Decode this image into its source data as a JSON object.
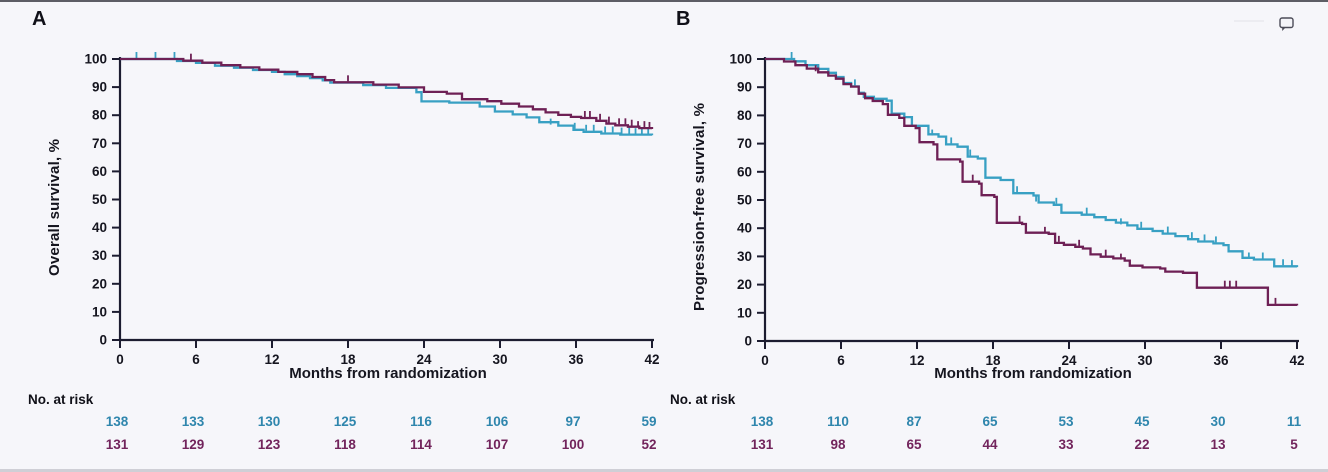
{
  "page": {
    "risk_header": "No. at risk",
    "comment_icon": "speech-bubble-outline"
  },
  "colors": {
    "background": "#f6f6fa",
    "axis": "#1c1c30",
    "tick_text": "#15151f",
    "curve_cyan": "#38a0c3",
    "curve_maroon": "#6e2055",
    "risk_text_cyan": "#2f86ad",
    "risk_text_maroon": "#72245c"
  },
  "chart_data": [
    {
      "id": "overall-survival",
      "panel_label": "A",
      "type": "line",
      "subtype": "kaplan-meier-step",
      "ylabel": "Overall survival, %",
      "xlabel": "Months from randomization",
      "xlim": [
        0,
        42
      ],
      "ylim": [
        0,
        100
      ],
      "xticks": [
        0,
        6,
        12,
        18,
        24,
        30,
        36,
        42
      ],
      "yticks": [
        0,
        10,
        20,
        30,
        40,
        50,
        60,
        70,
        80,
        90,
        100
      ],
      "grid": false,
      "legend": "none",
      "series": [
        {
          "name": "arm-cyan",
          "color": "#38a0c3",
          "points": [
            [
              0,
              100
            ],
            [
              4.5,
              99.3
            ],
            [
              6,
              98.6
            ],
            [
              7.5,
              97.6
            ],
            [
              9,
              96.9
            ],
            [
              10.5,
              96.1
            ],
            [
              12,
              95.4
            ],
            [
              13,
              94.6
            ],
            [
              14,
              93.9
            ],
            [
              15,
              93.2
            ],
            [
              16,
              92.4
            ],
            [
              16.6,
              91.6
            ],
            [
              19.2,
              90.7
            ],
            [
              21,
              89.7
            ],
            [
              23.4,
              88.2
            ],
            [
              23.8,
              84.9
            ],
            [
              26,
              84.5
            ],
            [
              28.4,
              83.1
            ],
            [
              29.6,
              81.3
            ],
            [
              31,
              80.3
            ],
            [
              32.1,
              79.2
            ],
            [
              33.1,
              77.5
            ],
            [
              34.6,
              76.3
            ],
            [
              35.8,
              74.8
            ],
            [
              36.6,
              74.1
            ],
            [
              38,
              73.5
            ],
            [
              39.5,
              73.1
            ],
            [
              42,
              72.9
            ]
          ],
          "censor_ticks": [
            [
              1.3,
              100
            ],
            [
              2.8,
              100
            ],
            [
              4.3,
              100
            ],
            [
              34,
              76.3
            ],
            [
              35.9,
              74.8
            ],
            [
              36.8,
              74.1
            ],
            [
              37.4,
              74.1
            ],
            [
              38.3,
              73.5
            ],
            [
              38.9,
              73.5
            ],
            [
              39.6,
              73.1
            ],
            [
              40.2,
              73.1
            ],
            [
              40.7,
              72.9
            ],
            [
              41.2,
              72.9
            ],
            [
              41.7,
              72.9
            ]
          ]
        },
        {
          "name": "arm-maroon",
          "color": "#6e2055",
          "points": [
            [
              0,
              100
            ],
            [
              5,
              99.4
            ],
            [
              6.5,
              98.7
            ],
            [
              8,
              97.8
            ],
            [
              9.5,
              97
            ],
            [
              11,
              96.2
            ],
            [
              12.5,
              95.4
            ],
            [
              14,
              94.6
            ],
            [
              15.2,
              93.6
            ],
            [
              16.2,
              92.5
            ],
            [
              16.9,
              91.7
            ],
            [
              20,
              90.9
            ],
            [
              22,
              89.9
            ],
            [
              24,
              88.3
            ],
            [
              25.8,
              87.7
            ],
            [
              27,
              85.7
            ],
            [
              29,
              85
            ],
            [
              30.1,
              84.1
            ],
            [
              31.5,
              83.1
            ],
            [
              32.6,
              82.1
            ],
            [
              33.6,
              81
            ],
            [
              34.6,
              80.1
            ],
            [
              35.6,
              79.4
            ],
            [
              36.4,
              79
            ],
            [
              37.6,
              78
            ],
            [
              38.4,
              77
            ],
            [
              39.1,
              76.4
            ],
            [
              40.1,
              75.9
            ],
            [
              41,
              75.4
            ],
            [
              42,
              75.1
            ]
          ],
          "censor_ticks": [
            [
              5.6,
              99.4
            ],
            [
              18,
              91.7
            ],
            [
              36.7,
              79
            ],
            [
              37.1,
              79
            ],
            [
              37.9,
              78
            ],
            [
              38.6,
              77
            ],
            [
              39.4,
              76.4
            ],
            [
              39.9,
              76.4
            ],
            [
              40.4,
              75.9
            ],
            [
              40.9,
              75.4
            ],
            [
              41.4,
              75.4
            ],
            [
              41.8,
              75.1
            ]
          ]
        }
      ],
      "no_at_risk": {
        "label": "No. at risk",
        "rows": [
          {
            "name": "arm-cyan",
            "color": "#2f86ad",
            "values": [
              138,
              133,
              130,
              125,
              116,
              106,
              97,
              59
            ]
          },
          {
            "name": "arm-maroon",
            "color": "#72245c",
            "values": [
              131,
              129,
              123,
              118,
              114,
              107,
              100,
              52
            ]
          }
        ]
      }
    },
    {
      "id": "progression-free-survival",
      "panel_label": "B",
      "type": "line",
      "subtype": "kaplan-meier-step",
      "ylabel": "Progression-free survival, %",
      "xlabel": "Months from randomization",
      "xlim": [
        0,
        42
      ],
      "ylim": [
        0,
        100
      ],
      "xticks": [
        0,
        6,
        12,
        18,
        24,
        30,
        36,
        42
      ],
      "yticks": [
        0,
        10,
        20,
        30,
        40,
        50,
        60,
        70,
        80,
        90,
        100
      ],
      "grid": false,
      "legend": "none",
      "series": [
        {
          "name": "arm-cyan",
          "color": "#38a0c3",
          "points": [
            [
              0,
              100
            ],
            [
              2.3,
              99.2
            ],
            [
              3.2,
              97.8
            ],
            [
              4.2,
              96.5
            ],
            [
              5,
              95.1
            ],
            [
              5.6,
              93.6
            ],
            [
              6.2,
              91.5
            ],
            [
              6.8,
              90.3
            ],
            [
              7.4,
              88
            ],
            [
              7.8,
              86.6
            ],
            [
              8.6,
              85.9
            ],
            [
              9.6,
              85.2
            ],
            [
              10,
              80.6
            ],
            [
              11,
              79.4
            ],
            [
              11.6,
              76.3
            ],
            [
              12.9,
              73.3
            ],
            [
              13.7,
              72.5
            ],
            [
              14.3,
              69.7
            ],
            [
              15.2,
              68.9
            ],
            [
              16,
              65.4
            ],
            [
              16.8,
              64.7
            ],
            [
              17.4,
              57.9
            ],
            [
              18.6,
              57.1
            ],
            [
              19.6,
              52.4
            ],
            [
              21.2,
              51.6
            ],
            [
              21.6,
              49.1
            ],
            [
              22.8,
              48.3
            ],
            [
              23.4,
              45.5
            ],
            [
              25,
              44.8
            ],
            [
              26,
              43.9
            ],
            [
              26.9,
              42.9
            ],
            [
              27.7,
              42
            ],
            [
              28.6,
              41
            ],
            [
              29.4,
              39.8
            ],
            [
              30.6,
              39
            ],
            [
              31.4,
              38.1
            ],
            [
              32.4,
              37.2
            ],
            [
              33.4,
              36.1
            ],
            [
              34.2,
              35.3
            ],
            [
              35.4,
              34.6
            ],
            [
              36.2,
              34
            ],
            [
              36.6,
              31.8
            ],
            [
              37.7,
              29.5
            ],
            [
              38.6,
              28.9
            ],
            [
              40.2,
              26.5
            ],
            [
              42,
              26.2
            ]
          ],
          "censor_ticks": [
            [
              2.1,
              100
            ],
            [
              7.1,
              90.3
            ],
            [
              13.2,
              72.5
            ],
            [
              14.7,
              69.7
            ],
            [
              16.2,
              65.4
            ],
            [
              19.9,
              52.4
            ],
            [
              21.4,
              49.1
            ],
            [
              23,
              48.3
            ],
            [
              25.4,
              44.8
            ],
            [
              28.1,
              41
            ],
            [
              29.7,
              39.8
            ],
            [
              31.8,
              38.1
            ],
            [
              33.7,
              36.1
            ],
            [
              34.7,
              35.3
            ],
            [
              35.6,
              34.6
            ],
            [
              38.2,
              28.9
            ],
            [
              39.3,
              28.9
            ],
            [
              40.9,
              26.5
            ],
            [
              41.6,
              26.2
            ]
          ]
        },
        {
          "name": "arm-maroon",
          "color": "#6e2055",
          "points": [
            [
              0,
              100
            ],
            [
              1.5,
              99.1
            ],
            [
              2.4,
              97.8
            ],
            [
              3.3,
              96.6
            ],
            [
              4.2,
              95.3
            ],
            [
              5,
              94.1
            ],
            [
              5.6,
              93
            ],
            [
              6.2,
              91.1
            ],
            [
              6.8,
              90.2
            ],
            [
              7.4,
              87.7
            ],
            [
              7.9,
              86.1
            ],
            [
              8.5,
              85.1
            ],
            [
              9.3,
              84
            ],
            [
              9.7,
              80.2
            ],
            [
              10.6,
              79.1
            ],
            [
              11,
              76.3
            ],
            [
              11.9,
              75.5
            ],
            [
              12.2,
              70.5
            ],
            [
              13.3,
              69.7
            ],
            [
              13.6,
              64.4
            ],
            [
              15.4,
              63.6
            ],
            [
              15.6,
              56.5
            ],
            [
              16.9,
              55.8
            ],
            [
              17.1,
              51.7
            ],
            [
              18.1,
              51.1
            ],
            [
              18.3,
              41.9
            ],
            [
              20.3,
              41.5
            ],
            [
              20.6,
              38.4
            ],
            [
              22.4,
              38
            ],
            [
              22.9,
              34.8
            ],
            [
              23.6,
              34.1
            ],
            [
              24.5,
              33.4
            ],
            [
              25.1,
              32.8
            ],
            [
              25.7,
              30.7
            ],
            [
              26.5,
              29.9
            ],
            [
              27.5,
              29.3
            ],
            [
              28.4,
              28.5
            ],
            [
              28.8,
              26.7
            ],
            [
              29.8,
              26.1
            ],
            [
              31.2,
              25.7
            ],
            [
              31.6,
              24.6
            ],
            [
              33,
              24.2
            ],
            [
              34.1,
              18.9
            ],
            [
              39.7,
              12.8
            ],
            [
              42,
              12.6
            ]
          ],
          "censor_ticks": [
            [
              4,
              95.3
            ],
            [
              16.4,
              56.5
            ],
            [
              20.1,
              41.9
            ],
            [
              22.1,
              38
            ],
            [
              23.2,
              34.8
            ],
            [
              24.8,
              33.4
            ],
            [
              26.9,
              29.9
            ],
            [
              28.1,
              28.5
            ],
            [
              36.3,
              18.9
            ],
            [
              36.7,
              18.9
            ],
            [
              37.2,
              18.9
            ],
            [
              40.3,
              12.8
            ]
          ]
        }
      ],
      "no_at_risk": {
        "label": "No. at risk",
        "rows": [
          {
            "name": "arm-cyan",
            "color": "#2f86ad",
            "values": [
              138,
              110,
              87,
              65,
              53,
              45,
              30,
              11
            ]
          },
          {
            "name": "arm-maroon",
            "color": "#72245c",
            "values": [
              131,
              98,
              65,
              44,
              33,
              22,
              13,
              5
            ]
          }
        ]
      }
    }
  ]
}
